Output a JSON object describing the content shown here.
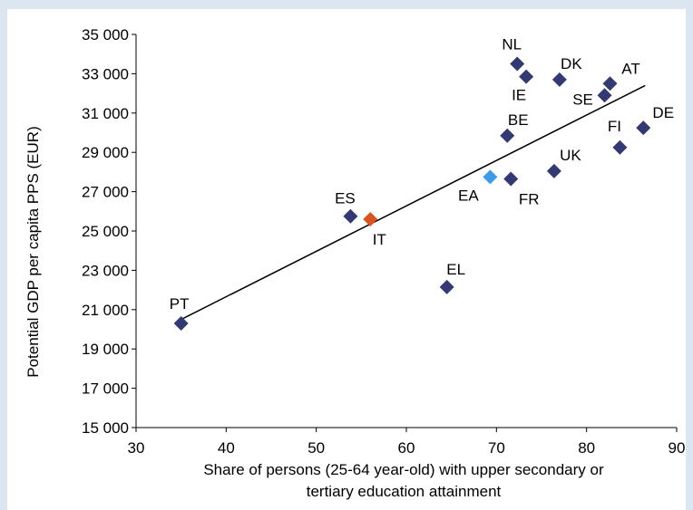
{
  "chart_data": {
    "type": "scatter",
    "title": "",
    "xlabel_lines": [
      "Share of persons (25-64 year-old) with upper secondary or",
      "tertiary education attainment"
    ],
    "ylabel": "Potential GDP per capita PPS (EUR)",
    "xlim": [
      30,
      90
    ],
    "ylim": [
      15000,
      35000
    ],
    "x_ticks": [
      30,
      40,
      50,
      60,
      70,
      80,
      90
    ],
    "y_ticks": [
      15000,
      17000,
      19000,
      21000,
      23000,
      25000,
      27000,
      29000,
      31000,
      33000,
      35000
    ],
    "y_tick_labels": [
      "15 000",
      "17 000",
      "19 000",
      "21 000",
      "23 000",
      "25 000",
      "27 000",
      "29 000",
      "31 000",
      "33 000",
      "35 000"
    ],
    "grid": false,
    "trendline": {
      "x": [
        35,
        86.5
      ],
      "y": [
        20500,
        32400
      ]
    },
    "points": [
      {
        "label": "PT",
        "x": 35.0,
        "y": 20300,
        "color": "#333a73"
      },
      {
        "label": "ES",
        "x": 53.8,
        "y": 25750,
        "color": "#333a73"
      },
      {
        "label": "IT",
        "x": 56.0,
        "y": 25600,
        "color": "#d9541e"
      },
      {
        "label": "EL",
        "x": 64.5,
        "y": 22150,
        "color": "#333a73"
      },
      {
        "label": "EA",
        "x": 69.3,
        "y": 27750,
        "color": "#3d9be9"
      },
      {
        "label": "BE",
        "x": 71.2,
        "y": 29850,
        "color": "#333a73"
      },
      {
        "label": "FR",
        "x": 71.6,
        "y": 27650,
        "color": "#333a73"
      },
      {
        "label": "NL",
        "x": 72.3,
        "y": 33500,
        "color": "#333a73"
      },
      {
        "label": "IE",
        "x": 73.3,
        "y": 32850,
        "color": "#333a73"
      },
      {
        "label": "UK",
        "x": 76.4,
        "y": 28050,
        "color": "#333a73"
      },
      {
        "label": "DK",
        "x": 77.0,
        "y": 32700,
        "color": "#333a73"
      },
      {
        "label": "SE",
        "x": 82.0,
        "y": 31900,
        "color": "#333a73"
      },
      {
        "label": "AT",
        "x": 82.6,
        "y": 32500,
        "color": "#333a73"
      },
      {
        "label": "FI",
        "x": 83.7,
        "y": 29250,
        "color": "#333a73"
      },
      {
        "label": "DE",
        "x": 86.3,
        "y": 30250,
        "color": "#333a73"
      }
    ]
  }
}
